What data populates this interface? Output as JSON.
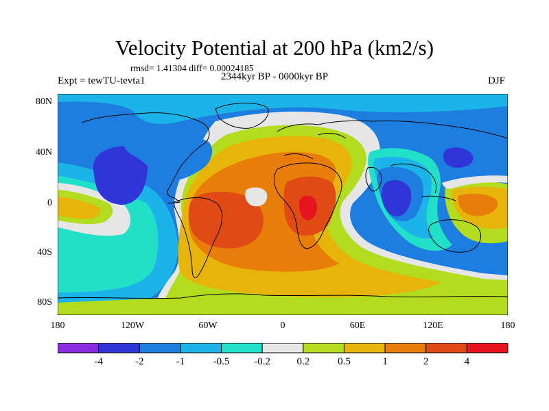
{
  "title": "Velocity Potential at 200 hPa (km2/s)",
  "stats": "rmsd= 1.41304  diff= 0.00024185",
  "experiment": "Expt = tewTU-tevta1",
  "period": "2344kyr BP - 0000kyr BP",
  "season": "DJF",
  "lat_ticks": [
    "80N",
    "40N",
    "0",
    "40S",
    "80S"
  ],
  "lon_ticks": [
    "180",
    "120W",
    "60W",
    "0",
    "60E",
    "120E",
    "180"
  ],
  "colorbar": {
    "colors": [
      "#8a2be2",
      "#2f35d6",
      "#1e7ee0",
      "#1cb4e8",
      "#22e0c8",
      "#e6e6e6",
      "#b4dc1e",
      "#e6b40a",
      "#e87d0a",
      "#e04a14",
      "#e6141e"
    ],
    "labels": [
      "-4",
      "-2",
      "-1",
      "-0.5",
      "-0.2",
      "0.2",
      "0.5",
      "1",
      "2",
      "4"
    ]
  }
}
